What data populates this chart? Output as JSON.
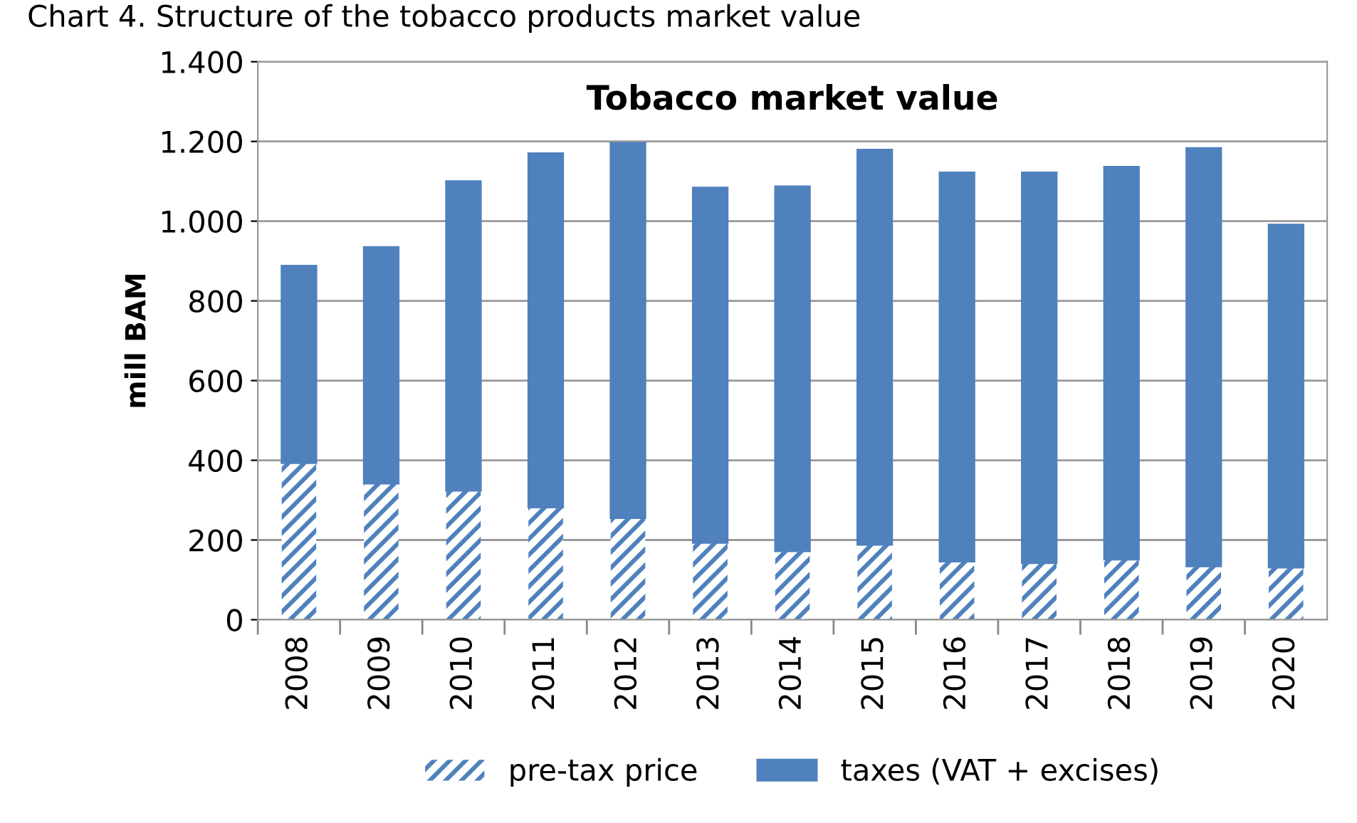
{
  "chart_data": {
    "type": "bar",
    "title": "Chart 4. Structure of the tobacco products market value",
    "subtitle": "Tobacco market value",
    "ylabel": "mill BAM",
    "categories": [
      "2008",
      "2009",
      "2010",
      "2011",
      "2012",
      "2013",
      "2014",
      "2015",
      "2016",
      "2017",
      "2018",
      "2019",
      "2020"
    ],
    "stacked": true,
    "series": [
      {
        "name": "pre-tax price",
        "color": "#4f81bd",
        "values": [
          393,
          342,
          324,
          282,
          255,
          193,
          172,
          188,
          146,
          142,
          151,
          134,
          131
        ]
      },
      {
        "name": "taxes (VAT + excises)",
        "color": "#4f81bd",
        "values": [
          495,
          593,
          776,
          888,
          941,
          891,
          915,
          991,
          976,
          980,
          985,
          1049,
          860
        ]
      }
    ],
    "ylim": [
      0,
      1400
    ],
    "yticks": [
      0,
      200,
      400,
      600,
      800,
      {
        "value": 1000,
        "label": "1.000"
      },
      {
        "value": 1200,
        "label": "1.200"
      },
      {
        "value": 1400,
        "label": "1.400"
      }
    ],
    "grid": "y",
    "legend": "bottom"
  }
}
